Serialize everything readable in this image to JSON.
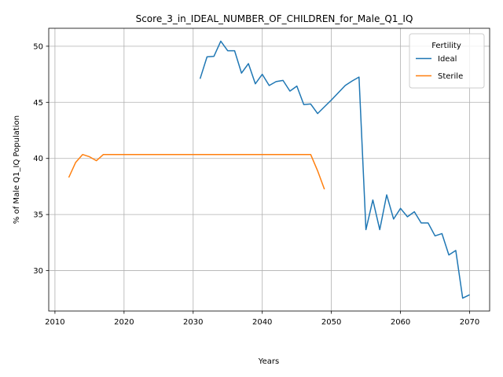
{
  "chart_data": {
    "type": "line",
    "title": "Score_3_in_IDEAL_NUMBER_OF_CHILDREN_for_Male_Q1_IQ",
    "xlabel": "Years",
    "ylabel": "% of Male Q1_IQ Population",
    "xlim": [
      2009.1,
      2072.9
    ],
    "ylim": [
      26.4,
      51.6
    ],
    "xticks": [
      2010,
      2020,
      2030,
      2040,
      2050,
      2060,
      2070
    ],
    "yticks": [
      30,
      35,
      40,
      45,
      50
    ],
    "grid": true,
    "legend": {
      "title": "Fertility",
      "placement": "top-right"
    },
    "series": [
      {
        "name": "Ideal",
        "color": "#1f77b4",
        "x": [
          2031,
          2032,
          2033,
          2034,
          2035,
          2036,
          2037,
          2038,
          2039,
          2040,
          2041,
          2042,
          2043,
          2044,
          2045,
          2046,
          2047,
          2048,
          2049,
          2050,
          2051,
          2052,
          2053,
          2054,
          2055,
          2056,
          2057,
          2058,
          2059,
          2060,
          2061,
          2062,
          2063,
          2064,
          2065,
          2066,
          2067,
          2068,
          2069,
          2070
        ],
        "y": [
          47.1,
          49.05,
          49.1,
          50.45,
          49.6,
          49.6,
          47.6,
          48.45,
          46.65,
          47.5,
          46.5,
          46.85,
          46.95,
          46.0,
          46.45,
          44.8,
          44.85,
          44.0,
          44.6,
          45.2,
          45.85,
          46.5,
          46.9,
          47.25,
          33.65,
          36.3,
          33.65,
          36.75,
          34.6,
          35.55,
          34.8,
          35.25,
          34.25,
          34.25,
          33.1,
          33.3,
          31.4,
          31.8,
          27.55,
          27.85
        ]
      },
      {
        "name": "Sterile",
        "color": "#ff7f0e",
        "x": [
          2012,
          2013,
          2014,
          2015,
          2016,
          2017,
          2018,
          2019,
          2020,
          2021,
          2022,
          2023,
          2024,
          2025,
          2026,
          2027,
          2028,
          2029,
          2030,
          2031,
          2032,
          2033,
          2034,
          2035,
          2036,
          2037,
          2038,
          2039,
          2040,
          2041,
          2042,
          2043,
          2044,
          2045,
          2046,
          2047,
          2048,
          2049
        ],
        "y": [
          38.3,
          39.65,
          40.35,
          40.15,
          39.8,
          40.35,
          40.35,
          40.35,
          40.35,
          40.35,
          40.35,
          40.35,
          40.35,
          40.35,
          40.35,
          40.35,
          40.35,
          40.35,
          40.35,
          40.35,
          40.35,
          40.35,
          40.35,
          40.35,
          40.35,
          40.35,
          40.35,
          40.35,
          40.35,
          40.35,
          40.35,
          40.35,
          40.35,
          40.35,
          40.35,
          40.35,
          38.9,
          37.25
        ]
      }
    ]
  }
}
